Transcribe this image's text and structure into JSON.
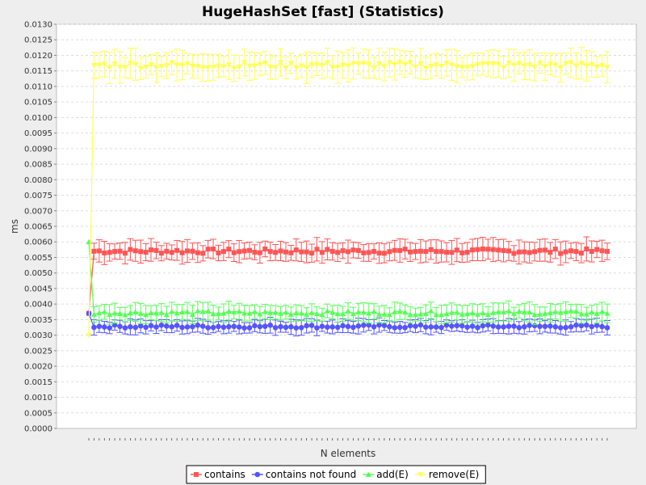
{
  "chart_data": {
    "type": "line",
    "title": "HugeHashSet [fast] (Statistics)",
    "xlabel": "N elements",
    "ylabel": "ms",
    "ylim": [
      0,
      0.013
    ],
    "yticks": [
      "0.0000",
      "0.0005",
      "0.0010",
      "0.0015",
      "0.0020",
      "0.0025",
      "0.0030",
      "0.0035",
      "0.0040",
      "0.0045",
      "0.0050",
      "0.0055",
      "0.0060",
      "0.0065",
      "0.0070",
      "0.0075",
      "0.0080",
      "0.0085",
      "0.0090",
      "0.0095",
      "0.0100",
      "0.0105",
      "0.0110",
      "0.0115",
      "0.0120",
      "0.0125",
      "0.0130"
    ],
    "grid": true,
    "legend": "bottom",
    "num_points": 101,
    "series": [
      {
        "name": "contains",
        "color": "#ff5555",
        "marker": "square",
        "first": 0.0037,
        "level": 0.0057,
        "err": 0.0003
      },
      {
        "name": "contains not found",
        "color": "#5555ff",
        "marker": "circle",
        "first": 0.0037,
        "level": 0.00328,
        "err": 0.0002
      },
      {
        "name": "add(E)",
        "color": "#55ff55",
        "marker": "triangle-up",
        "first": 0.006,
        "level": 0.00372,
        "err": 0.00025
      },
      {
        "name": "remove(E)",
        "color": "#ffff55",
        "marker": "triangle-down",
        "first": 0.003,
        "level": 0.01168,
        "err": 0.0004
      }
    ]
  }
}
